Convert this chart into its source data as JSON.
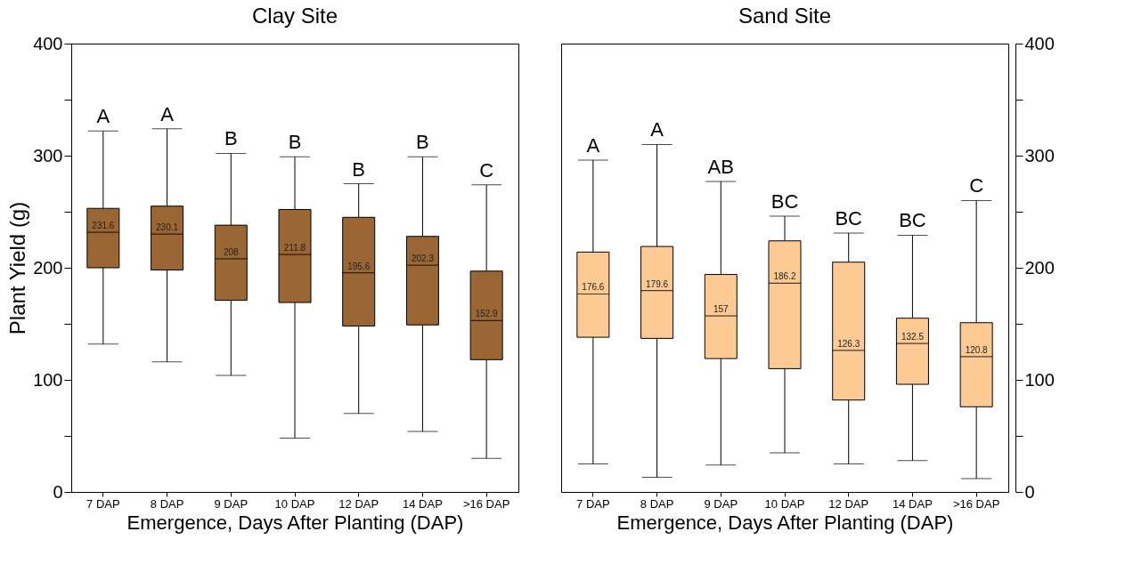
{
  "chart_data": [
    {
      "type": "box",
      "title": "Clay Site",
      "xlabel": "Emergence, Days After Planting (DAP)",
      "ylabel": "Plant Yield (g)",
      "categories": [
        "7 DAP",
        "8 DAP",
        "9 DAP",
        "10 DAP",
        "12 DAP",
        "14 DAP",
        ">16 DAP"
      ],
      "ylim": [
        0,
        400
      ],
      "yticks": [
        0,
        {
          "value": 50,
          "label": null
        },
        100,
        {
          "value": 150,
          "label": null
        },
        200,
        {
          "value": 250,
          "label": null
        },
        300,
        {
          "value": 350,
          "label": null
        },
        400
      ],
      "grid": false,
      "series": [
        {
          "color": "#9a6633",
          "boxes": [
            {
              "low": 132,
              "q1": 200,
              "median": 231.6,
              "q3": 253,
              "high": 322
            },
            {
              "low": 116,
              "q1": 198,
              "median": 230.1,
              "q3": 255,
              "high": 324
            },
            {
              "low": 104,
              "q1": 171,
              "median": 208,
              "q3": 238,
              "high": 302
            },
            {
              "low": 48,
              "q1": 169,
              "median": 211.8,
              "q3": 252,
              "high": 299
            },
            {
              "low": 70,
              "q1": 148,
              "median": 195.6,
              "q3": 245,
              "high": 275
            },
            {
              "low": 54,
              "q1": 149,
              "median": 202.3,
              "q3": 228,
              "high": 299
            },
            {
              "low": 30,
              "q1": 118,
              "median": 152.9,
              "q3": 197,
              "high": 274
            }
          ]
        }
      ],
      "annotations": [
        {
          "text": "A",
          "x": "7 DAP",
          "y": 322
        },
        {
          "text": "A",
          "x": "8 DAP",
          "y": 324
        },
        {
          "text": "B",
          "x": "9 DAP",
          "y": 302
        },
        {
          "text": "B",
          "x": "10 DAP",
          "y": 299
        },
        {
          "text": "B",
          "x": "12 DAP",
          "y": 275
        },
        {
          "text": "B",
          "x": "14 DAP",
          "y": 299
        },
        {
          "text": "C",
          "x": ">16 DAP",
          "y": 274
        },
        {
          "text": "231.6",
          "x": "7 DAP",
          "y": 231.6
        },
        {
          "text": "230.1",
          "x": "8 DAP",
          "y": 230.1
        },
        {
          "text": "208",
          "x": "9 DAP",
          "y": 208
        },
        {
          "text": "211.8",
          "x": "10 DAP",
          "y": 211.8
        },
        {
          "text": "195.6",
          "x": "12 DAP",
          "y": 195.6
        },
        {
          "text": "202.3",
          "x": "14 DAP",
          "y": 202.3
        },
        {
          "text": "152.9",
          "x": ">16 DAP",
          "y": 152.9
        }
      ]
    },
    {
      "type": "box",
      "title": "Sand Site",
      "xlabel": "Emergence, Days After Planting (DAP)",
      "categories": [
        "7 DAP",
        "8 DAP",
        "9 DAP",
        "10 DAP",
        "12 DAP",
        "14 DAP",
        ">16 DAP"
      ],
      "ylim": [
        0,
        400
      ],
      "yticks": [
        0,
        {
          "value": 50,
          "label": null
        },
        100,
        {
          "value": 150,
          "label": null
        },
        200,
        {
          "value": 250,
          "label": null
        },
        300,
        {
          "value": 350,
          "label": null
        },
        400
      ],
      "grid": false,
      "series": [
        {
          "color": "#fdca93",
          "boxes": [
            {
              "low": 25,
              "q1": 138,
              "median": 176.6,
              "q3": 214,
              "high": 296
            },
            {
              "low": 13,
              "q1": 137,
              "median": 179.6,
              "q3": 219,
              "high": 310
            },
            {
              "low": 24,
              "q1": 119,
              "median": 157,
              "q3": 194,
              "high": 277
            },
            {
              "low": 35,
              "q1": 110,
              "median": 186.2,
              "q3": 224,
              "high": 246
            },
            {
              "low": 25,
              "q1": 82,
              "median": 126.3,
              "q3": 205,
              "high": 231
            },
            {
              "low": 28,
              "q1": 96,
              "median": 132.5,
              "q3": 155,
              "high": 229
            },
            {
              "low": 12,
              "q1": 76,
              "median": 120.8,
              "q3": 151,
              "high": 260
            }
          ]
        }
      ],
      "annotations": [
        {
          "text": "A",
          "x": "7 DAP",
          "y": 296
        },
        {
          "text": "A",
          "x": "8 DAP",
          "y": 310
        },
        {
          "text": "AB",
          "x": "9 DAP",
          "y": 277
        },
        {
          "text": "BC",
          "x": "10 DAP",
          "y": 246
        },
        {
          "text": "BC",
          "x": "12 DAP",
          "y": 231
        },
        {
          "text": "BC",
          "x": "14 DAP",
          "y": 229
        },
        {
          "text": "C",
          "x": ">16 DAP",
          "y": 260
        },
        {
          "text": "176.6",
          "x": "7 DAP",
          "y": 176.6
        },
        {
          "text": "179.6",
          "x": "8 DAP",
          "y": 179.6
        },
        {
          "text": "157",
          "x": "9 DAP",
          "y": 157
        },
        {
          "text": "186.2",
          "x": "10 DAP",
          "y": 186.2
        },
        {
          "text": "126.3",
          "x": "12 DAP",
          "y": 126.3
        },
        {
          "text": "132.5",
          "x": "14 DAP",
          "y": 132.5
        },
        {
          "text": "120.8",
          "x": ">16 DAP",
          "y": 120.8
        }
      ]
    }
  ]
}
